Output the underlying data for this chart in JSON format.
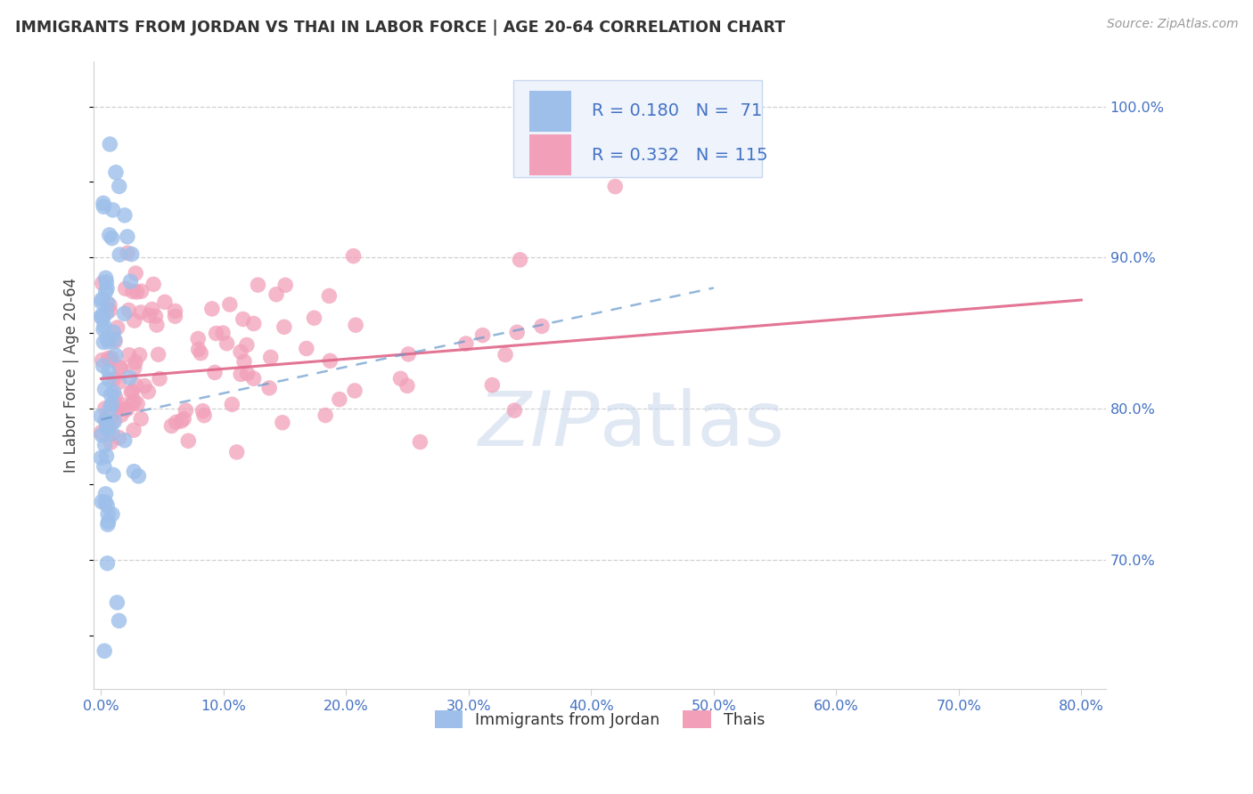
{
  "title": "IMMIGRANTS FROM JORDAN VS THAI IN LABOR FORCE | AGE 20-64 CORRELATION CHART",
  "source": "Source: ZipAtlas.com",
  "ylabel": "In Labor Force | Age 20-64",
  "jordan_R": 0.18,
  "jordan_N": 71,
  "thai_R": 0.332,
  "thai_N": 115,
  "jordan_color": "#9dbfea",
  "thai_color": "#f2a0ba",
  "jordan_trend_color": "#6699cc",
  "thai_trend_color": "#e06688",
  "legend_box_color": "#eef3fc",
  "legend_border_color": "#c8d8f0",
  "text_blue_color": "#4472c4",
  "title_color": "#333333",
  "source_color": "#999999",
  "axis_tick_color": "#4472c4",
  "grid_color": "#d0d0d0",
  "background_color": "#ffffff",
  "watermark_color": "#ccd9ee",
  "xlim": [
    -0.006,
    0.82
  ],
  "ylim": [
    0.615,
    1.03
  ],
  "x_ticks": [
    0.0,
    0.1,
    0.2,
    0.3,
    0.4,
    0.5,
    0.6,
    0.7,
    0.8
  ],
  "y_ticks": [
    0.7,
    0.8,
    0.9,
    1.0
  ],
  "jordan_trend_x0": 0.0,
  "jordan_trend_x1": 0.5,
  "jordan_trend_y0": 0.793,
  "jordan_trend_y1": 0.88,
  "thai_trend_x0": 0.0,
  "thai_trend_x1": 0.8,
  "thai_trend_y0": 0.82,
  "thai_trend_y1": 0.872
}
